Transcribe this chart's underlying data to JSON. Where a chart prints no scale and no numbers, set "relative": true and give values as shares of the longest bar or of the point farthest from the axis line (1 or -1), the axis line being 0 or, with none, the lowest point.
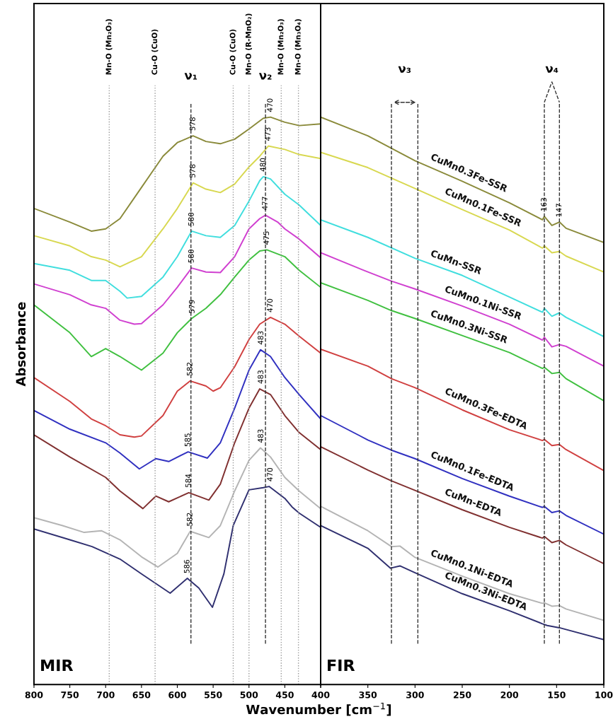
{
  "chart_data": [
    {
      "type": "line",
      "relative": true,
      "ylabel": "Absorbance",
      "xlabel": "Wavenumber [cm$^{−1}$]",
      "xlim": [
        800,
        400
      ],
      "xticks": [
        800,
        750,
        700,
        650,
        600,
        550,
        500,
        450,
        400
      ],
      "grid": false,
      "legend": false,
      "marker": "none",
      "line_style": "solid",
      "tick_labels": "x",
      "series": [
        {
          "color": "#8a8a3a",
          "x": [
            800,
            750,
            720,
            700,
            680,
            650,
            620,
            600,
            578,
            560,
            540,
            520,
            500,
            480,
            470,
            450,
            430,
            400
          ],
          "values": [
            0.839,
            0.815,
            0.799,
            0.803,
            0.821,
            0.876,
            0.931,
            0.955,
            0.967,
            0.957,
            0.953,
            0.961,
            0.979,
            0.998,
            1.0,
            0.991,
            0.985,
            0.988
          ]
        },
        {
          "color": "#d8d850",
          "x": [
            800,
            750,
            720,
            700,
            680,
            650,
            620,
            600,
            578,
            560,
            540,
            520,
            500,
            485,
            473,
            450,
            430,
            400
          ],
          "values": [
            0.791,
            0.773,
            0.754,
            0.748,
            0.736,
            0.754,
            0.803,
            0.839,
            0.884,
            0.873,
            0.867,
            0.882,
            0.912,
            0.931,
            0.949,
            0.943,
            0.934,
            0.927
          ]
        },
        {
          "color": "#40dede",
          "x": [
            800,
            750,
            720,
            700,
            680,
            670,
            650,
            620,
            600,
            580,
            560,
            540,
            520,
            500,
            485,
            480,
            470,
            450,
            430,
            400
          ],
          "values": [
            0.742,
            0.73,
            0.712,
            0.712,
            0.693,
            0.681,
            0.684,
            0.718,
            0.754,
            0.799,
            0.791,
            0.788,
            0.809,
            0.852,
            0.888,
            0.895,
            0.891,
            0.864,
            0.845,
            0.809
          ]
        },
        {
          "color": "#d040d0",
          "x": [
            800,
            750,
            720,
            700,
            680,
            660,
            650,
            620,
            600,
            580,
            560,
            540,
            520,
            500,
            485,
            477,
            460,
            450,
            430,
            400
          ],
          "values": [
            0.706,
            0.687,
            0.669,
            0.663,
            0.642,
            0.635,
            0.636,
            0.669,
            0.7,
            0.734,
            0.727,
            0.726,
            0.754,
            0.803,
            0.821,
            0.827,
            0.815,
            0.803,
            0.785,
            0.752
          ]
        },
        {
          "color": "#40c040",
          "x": [
            800,
            750,
            720,
            700,
            680,
            650,
            620,
            600,
            580,
            560,
            540,
            520,
            500,
            485,
            475,
            450,
            430,
            400
          ],
          "values": [
            0.669,
            0.62,
            0.578,
            0.592,
            0.578,
            0.554,
            0.584,
            0.62,
            0.645,
            0.663,
            0.687,
            0.718,
            0.748,
            0.764,
            0.766,
            0.754,
            0.73,
            0.7
          ]
        },
        {
          "color": "#d04040",
          "x": [
            800,
            750,
            720,
            700,
            680,
            660,
            650,
            620,
            600,
            582,
            560,
            550,
            540,
            520,
            500,
            485,
            470,
            450,
            430,
            400
          ],
          "values": [
            0.541,
            0.499,
            0.468,
            0.456,
            0.44,
            0.436,
            0.438,
            0.474,
            0.517,
            0.535,
            0.526,
            0.517,
            0.523,
            0.56,
            0.608,
            0.635,
            0.647,
            0.635,
            0.614,
            0.584
          ]
        },
        {
          "color": "#3030c0",
          "x": [
            800,
            750,
            700,
            680,
            653,
            630,
            612,
            585,
            558,
            540,
            520,
            500,
            484,
            470,
            450,
            430,
            400
          ],
          "values": [
            0.483,
            0.45,
            0.426,
            0.408,
            0.38,
            0.398,
            0.393,
            0.41,
            0.399,
            0.426,
            0.487,
            0.554,
            0.59,
            0.578,
            0.541,
            0.511,
            0.468
          ]
        },
        {
          "color": "#803030",
          "x": [
            800,
            750,
            700,
            680,
            648,
            630,
            612,
            584,
            556,
            540,
            520,
            500,
            485,
            470,
            450,
            430,
            400
          ],
          "values": [
            0.44,
            0.401,
            0.365,
            0.341,
            0.31,
            0.332,
            0.322,
            0.338,
            0.325,
            0.353,
            0.426,
            0.487,
            0.521,
            0.511,
            0.474,
            0.444,
            0.414
          ]
        },
        {
          "color": "#b4b4b4",
          "x": [
            800,
            760,
            730,
            706,
            680,
            650,
            627,
            600,
            582,
            556,
            540,
            520,
            500,
            484,
            470,
            450,
            430,
            400
          ],
          "values": [
            0.294,
            0.28,
            0.268,
            0.271,
            0.255,
            0.225,
            0.207,
            0.231,
            0.27,
            0.259,
            0.28,
            0.341,
            0.395,
            0.417,
            0.401,
            0.365,
            0.341,
            0.31
          ]
        },
        {
          "color": "#303070",
          "x": [
            800,
            750,
            719,
            680,
            650,
            610,
            586,
            570,
            551,
            535,
            522,
            500,
            480,
            472,
            450,
            440,
            430,
            400
          ],
          "values": [
            0.274,
            0.255,
            0.243,
            0.221,
            0.195,
            0.161,
            0.187,
            0.17,
            0.136,
            0.195,
            0.28,
            0.343,
            0.347,
            0.349,
            0.328,
            0.313,
            0.302,
            0.277
          ]
        }
      ],
      "ref_lines": [
        {
          "axis": "x",
          "value": 695,
          "label": "Mn-O (Mn₂O₃)",
          "color": "#999999",
          "line_style": "dotted"
        },
        {
          "axis": "x",
          "value": 631,
          "label": "Cu-O (CuO)",
          "color": "#999999",
          "line_style": "dotted"
        },
        {
          "axis": "x",
          "value": 522,
          "label": "Cu-O (CuO)",
          "color": "#999999",
          "line_style": "dotted"
        },
        {
          "axis": "x",
          "value": 500,
          "label": "Mn-O (R-MnO₂)",
          "color": "#999999",
          "line_style": "dotted"
        },
        {
          "axis": "x",
          "value": 455,
          "label": "Mn-O (Mn₂O₃)",
          "color": "#999999",
          "line_style": "dotted"
        },
        {
          "axis": "x",
          "value": 431,
          "label": "Mn-O (Mn₃O₄)",
          "color": "#999999",
          "line_style": "dotted"
        },
        {
          "axis": "x",
          "value": 581,
          "label": "ν₁",
          "color": "#333333",
          "line_style": "dashed"
        },
        {
          "axis": "x",
          "value": 477,
          "label": "ν₂",
          "color": "#333333",
          "line_style": "dashed"
        }
      ],
      "annotations": [
        "MIR",
        {
          "text": "578",
          "x": 578,
          "y": 0.967
        },
        {
          "text": "578",
          "x": 578,
          "y": 0.884
        },
        {
          "text": "580",
          "x": 580,
          "y": 0.799
        },
        {
          "text": "580",
          "x": 580,
          "y": 0.734
        },
        {
          "text": "579",
          "x": 579,
          "y": 0.645
        },
        {
          "text": "582",
          "x": 582,
          "y": 0.535
        },
        {
          "text": "585",
          "x": 585,
          "y": 0.41
        },
        {
          "text": "584",
          "x": 584,
          "y": 0.338
        },
        {
          "text": "582",
          "x": 582,
          "y": 0.27
        },
        {
          "text": "586",
          "x": 586,
          "y": 0.187
        },
        {
          "text": "470",
          "x": 470,
          "y": 1.0
        },
        {
          "text": "473",
          "x": 473,
          "y": 0.949
        },
        {
          "text": "480",
          "x": 480,
          "y": 0.895
        },
        {
          "text": "477",
          "x": 477,
          "y": 0.827
        },
        {
          "text": "475",
          "x": 475,
          "y": 0.766
        },
        {
          "text": "470",
          "x": 470,
          "y": 0.647
        },
        {
          "text": "483",
          "x": 483,
          "y": 0.59
        },
        {
          "text": "483",
          "x": 483,
          "y": 0.521
        },
        {
          "text": "483",
          "x": 483,
          "y": 0.417
        },
        {
          "text": "470",
          "x": 470,
          "y": 0.349
        }
      ]
    },
    {
      "type": "line",
      "relative": true,
      "xlim": [
        400,
        100
      ],
      "xticks": [
        {
          "value": 400,
          "label": null
        },
        350,
        300,
        250,
        200,
        150,
        100
      ],
      "grid": false,
      "legend": false,
      "marker": "none",
      "line_style": "solid",
      "tick_labels": "x",
      "series": [
        {
          "name": "CuMn0.3Fe-SSR",
          "color": "#8a8a3a",
          "x": [
            400,
            350,
            300,
            250,
            200,
            165,
            163,
            155,
            147,
            140,
            100
          ],
          "values": [
            1.0,
            0.967,
            0.923,
            0.887,
            0.849,
            0.819,
            0.825,
            0.809,
            0.815,
            0.804,
            0.779
          ]
        },
        {
          "name": "CuMn0.1Fe-SSR",
          "color": "#d8d850",
          "x": [
            400,
            350,
            300,
            250,
            200,
            165,
            163,
            155,
            147,
            140,
            100
          ],
          "values": [
            0.938,
            0.911,
            0.874,
            0.837,
            0.801,
            0.769,
            0.773,
            0.761,
            0.763,
            0.755,
            0.727
          ]
        },
        {
          "name": "CuMn-SSR",
          "color": "#40dede",
          "x": [
            400,
            350,
            300,
            250,
            200,
            165,
            163,
            155,
            147,
            140,
            100
          ],
          "values": [
            0.819,
            0.788,
            0.751,
            0.721,
            0.683,
            0.656,
            0.663,
            0.649,
            0.655,
            0.647,
            0.613
          ]
        },
        {
          "name": "CuMn0.1Ni-SSR",
          "color": "#d040d0",
          "x": [
            400,
            350,
            325,
            300,
            250,
            200,
            165,
            163,
            155,
            147,
            140,
            100
          ],
          "values": [
            0.761,
            0.727,
            0.711,
            0.697,
            0.667,
            0.635,
            0.607,
            0.612,
            0.595,
            0.599,
            0.596,
            0.561
          ]
        },
        {
          "name": "CuMn0.3Ni-SSR",
          "color": "#40c040",
          "x": [
            400,
            350,
            325,
            300,
            250,
            200,
            165,
            163,
            155,
            147,
            140,
            100
          ],
          "values": [
            0.708,
            0.677,
            0.659,
            0.645,
            0.615,
            0.585,
            0.557,
            0.559,
            0.548,
            0.55,
            0.539,
            0.5
          ]
        },
        {
          "name": "CuMn0.3Fe-EDTA",
          "color": "#d04040",
          "x": [
            400,
            350,
            325,
            300,
            250,
            200,
            165,
            163,
            155,
            147,
            140,
            100
          ],
          "values": [
            0.591,
            0.561,
            0.539,
            0.523,
            0.484,
            0.449,
            0.43,
            0.432,
            0.421,
            0.423,
            0.414,
            0.377
          ]
        },
        {
          "name": "CuMn0.1Fe-EDTA",
          "color": "#3030c0",
          "x": [
            400,
            350,
            325,
            300,
            250,
            200,
            165,
            163,
            155,
            147,
            140,
            100
          ],
          "values": [
            0.474,
            0.431,
            0.413,
            0.398,
            0.363,
            0.332,
            0.312,
            0.314,
            0.303,
            0.306,
            0.298,
            0.265
          ]
        },
        {
          "name": "CuMn-EDTA",
          "color": "#803030",
          "x": [
            400,
            350,
            325,
            300,
            250,
            200,
            165,
            163,
            155,
            147,
            140,
            100
          ],
          "values": [
            0.419,
            0.378,
            0.359,
            0.342,
            0.308,
            0.277,
            0.258,
            0.261,
            0.25,
            0.254,
            0.246,
            0.213
          ]
        },
        {
          "name": "CuMn0.1Ni-EDTA",
          "color": "#b4b4b4",
          "x": [
            400,
            350,
            325,
            316,
            300,
            250,
            200,
            165,
            163,
            155,
            147,
            140,
            100
          ],
          "values": [
            0.314,
            0.271,
            0.243,
            0.244,
            0.224,
            0.191,
            0.16,
            0.143,
            0.144,
            0.138,
            0.139,
            0.133,
            0.113
          ]
        },
        {
          "name": "CuMn0.3Ni-EDTA",
          "color": "#303070",
          "x": [
            400,
            350,
            326,
            316,
            300,
            250,
            200,
            165,
            160,
            147,
            100
          ],
          "values": [
            0.28,
            0.24,
            0.205,
            0.209,
            0.197,
            0.16,
            0.13,
            0.107,
            0.104,
            0.1,
            0.079
          ]
        }
      ],
      "ref_lines": [
        {
          "axis": "x",
          "value": 325,
          "label": "ν₃",
          "color": "#333333",
          "line_style": "dashed"
        },
        {
          "axis": "x",
          "value": 297,
          "label": null,
          "color": "#333333",
          "line_style": "dashed"
        },
        {
          "axis": "x",
          "value": 163,
          "label": "ν₄",
          "color": "#333333",
          "line_style": "dashed"
        },
        {
          "axis": "x",
          "value": 147,
          "label": null,
          "color": "#333333",
          "line_style": "dashed"
        }
      ],
      "annotations": [
        "FIR",
        {
          "text": "163",
          "x": 163,
          "y": 0.825
        },
        {
          "text": "147",
          "x": 147,
          "y": 0.815
        }
      ]
    }
  ]
}
